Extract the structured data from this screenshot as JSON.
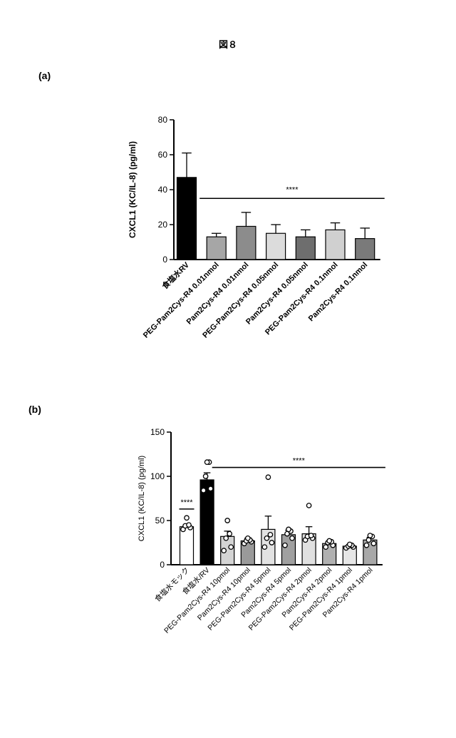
{
  "figure": {
    "title": "図８",
    "panel_a_label": "(a)",
    "panel_b_label": "(b)"
  },
  "chart_data": [
    {
      "type": "bar",
      "panel": "(a)",
      "title": "",
      "xlabel": "",
      "ylabel": "CXCL1 (KC/IL-8) (pg/ml)",
      "ylim": [
        0,
        80
      ],
      "yticks": [
        0,
        20,
        40,
        60,
        80
      ],
      "categories": [
        "食塩水RV",
        "PEG-Pam2Cys-R4 0.01nmol",
        "Pam2Cys-R4 0.01nmol",
        "PEG-Pam2Cys-R4 0.05nmol",
        "Pam2Cys-R4 0.05nmol",
        "PEG-Pam2Cys-R4 0.1nmol",
        "Pam2Cys-R4 0.1nmol"
      ],
      "values": [
        47,
        13,
        19,
        15,
        13,
        17,
        12
      ],
      "errors": [
        14,
        2,
        8,
        5,
        4,
        4,
        6
      ],
      "colors": [
        "#000000",
        "#a6a6a6",
        "#8c8c8c",
        "#dcdcdc",
        "#6e6e6e",
        "#d0d0d0",
        "#7a7a7a"
      ],
      "significance": {
        "label": "****",
        "from_category": 1,
        "to_category": 6,
        "y": 35
      }
    },
    {
      "type": "bar",
      "panel": "(b)",
      "title": "",
      "xlabel": "",
      "ylabel": "CXCL1 (KC/IL-8) (pg/ml)",
      "ylim": [
        0,
        150
      ],
      "yticks": [
        0,
        50,
        100,
        150
      ],
      "categories": [
        "食塩水モック",
        "食塩水/RV",
        "PEG-Pam2Cys-R4 10pmol",
        "Pam2Cys-R4 10pmol",
        "PEG-Pam2Cys-R4 5pmol",
        "Pam2Cys-R4 5pmol",
        "PEG-Pam2Cys-R4 2pmol",
        "Pam2Cys-R4 2pmol",
        "PEG-Pam2Cys-R4 1pmol",
        "Pam2Cys-R4 1pmol"
      ],
      "values": [
        43,
        96,
        32,
        27,
        40,
        34,
        35,
        24,
        21,
        28
      ],
      "errors": [
        2,
        8,
        6,
        3,
        15,
        5,
        8,
        2,
        1,
        3
      ],
      "points": [
        [
          40,
          42,
          44,
          45,
          53
        ],
        [
          84,
          86,
          100,
          116,
          116
        ],
        [
          16,
          20,
          30,
          35,
          50
        ],
        [
          24,
          26,
          27,
          28,
          30
        ],
        [
          20,
          25,
          30,
          34,
          99
        ],
        [
          22,
          30,
          35,
          38,
          40
        ],
        [
          28,
          30,
          32,
          33,
          67
        ],
        [
          20,
          22,
          25,
          26,
          27
        ],
        [
          19,
          20,
          21,
          22,
          23
        ],
        [
          22,
          24,
          28,
          32,
          33
        ]
      ],
      "colors": [
        "#ffffff",
        "#000000",
        "#d4d4d4",
        "#9a9a9a",
        "#e2e2e2",
        "#a0a0a0",
        "#e0e0e0",
        "#b0b0b0",
        "#e6e6e6",
        "#a8a8a8"
      ],
      "significance": [
        {
          "label": "****",
          "from_category": 2,
          "to_category": 9,
          "y": 110
        },
        {
          "label": "****",
          "from_category": 0,
          "to_category": 0,
          "y": 63
        }
      ]
    }
  ]
}
